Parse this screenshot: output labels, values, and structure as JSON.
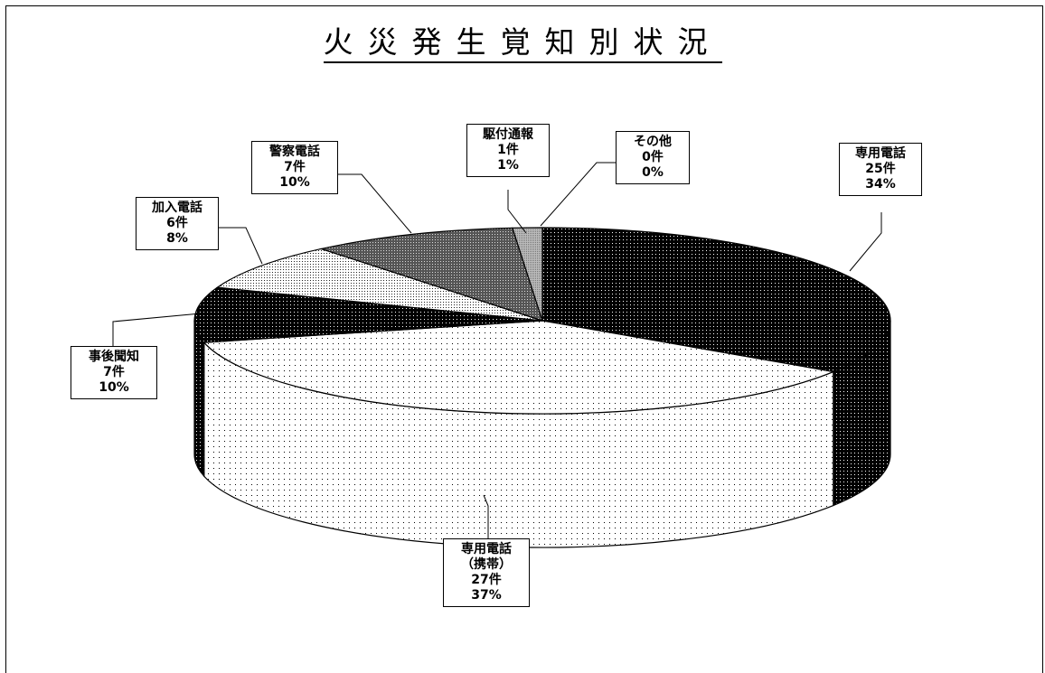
{
  "title": "火災発生覚知別状況",
  "chart_data": {
    "type": "pie",
    "title": "火災発生覚知別状況",
    "style": "3d",
    "slices": [
      {
        "label": "専用電話",
        "count_label": "25件",
        "percent_label": "34%",
        "value": 25,
        "pattern": "dark-dots"
      },
      {
        "label": "専用電話（携帯）",
        "count_label": "27件",
        "percent_label": "37%",
        "value": 27,
        "pattern": "sparse-dots"
      },
      {
        "label": "事後聞知",
        "count_label": "7件",
        "percent_label": "10%",
        "value": 7,
        "pattern": "dark-dots"
      },
      {
        "label": "加入電話",
        "count_label": "6件",
        "percent_label": "8%",
        "value": 6,
        "pattern": "light-dots"
      },
      {
        "label": "警察電話",
        "count_label": "7件",
        "percent_label": "10%",
        "value": 7,
        "pattern": "medium-gray"
      },
      {
        "label": "駆付通報",
        "count_label": "1件",
        "percent_label": "1%",
        "value": 1,
        "pattern": "light-gray"
      },
      {
        "label": "その他",
        "count_label": "0件",
        "percent_label": "0%",
        "value": 0,
        "pattern": "none"
      }
    ],
    "label_lines": {
      "専用電話（携帯）": [
        "専用電話",
        "（携帯）"
      ]
    }
  }
}
